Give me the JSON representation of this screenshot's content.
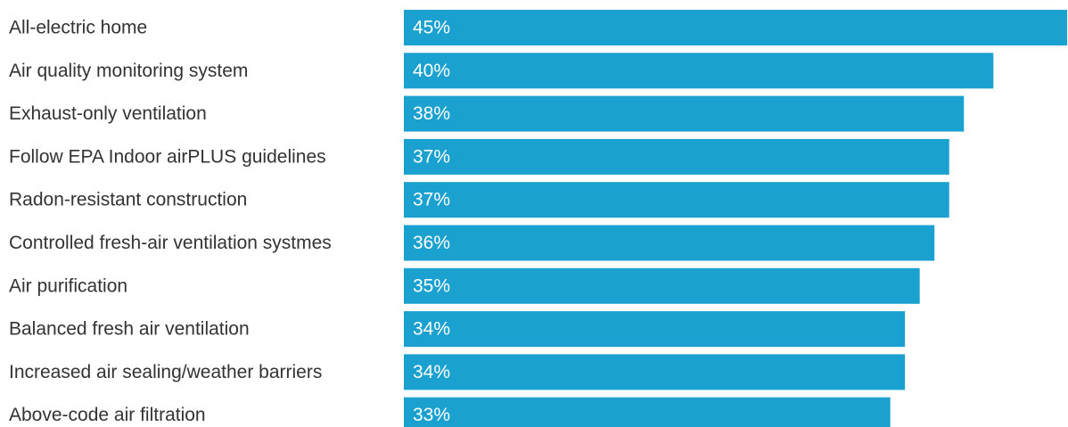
{
  "chart_data": {
    "type": "bar",
    "orientation": "horizontal",
    "categories": [
      "All-electric home",
      "Air quality monitoring system",
      "Exhaust-only ventilation",
      "Follow EPA Indoor airPLUS guidelines",
      "Radon-resistant construction",
      "Controlled fresh-air ventilation systmes",
      "Air purification",
      "Balanced fresh air ventilation",
      "Increased air sealing/weather barriers",
      "Above-code air filtration"
    ],
    "values": [
      45,
      40,
      38,
      37,
      37,
      36,
      35,
      34,
      34,
      33
    ],
    "value_labels": [
      "45%",
      "40%",
      "38%",
      "37%",
      "37%",
      "36%",
      "35%",
      "34%",
      "34%",
      "33%"
    ],
    "unit": "%",
    "xlim": [
      0,
      45
    ],
    "bar_color": "#1ba1cf",
    "grid": false,
    "legend": "none"
  }
}
